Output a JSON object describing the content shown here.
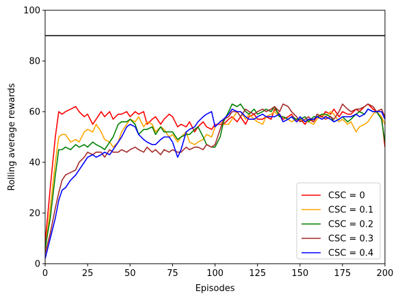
{
  "chart_data": {
    "type": "line",
    "title": "",
    "xlabel": "Episodes",
    "ylabel": "Rolling average rewards",
    "xlim": [
      0,
      200
    ],
    "ylim": [
      0,
      100
    ],
    "xticks": [
      0,
      25,
      50,
      75,
      100,
      125,
      150,
      175,
      200
    ],
    "yticks": [
      0,
      20,
      40,
      60,
      80,
      100
    ],
    "grid": false,
    "legend_position": "bottom-right",
    "reference_line": {
      "y": 90,
      "color": "#000000"
    },
    "series": [
      {
        "name": "CSC = 0",
        "color": "#ff0000",
        "x": [
          0,
          3,
          6,
          8,
          10,
          12,
          15,
          18,
          20,
          23,
          25,
          28,
          30,
          33,
          35,
          38,
          40,
          43,
          45,
          48,
          50,
          53,
          55,
          58,
          60,
          63,
          65,
          68,
          70,
          73,
          75,
          78,
          80,
          83,
          85,
          88,
          90,
          93,
          95,
          98,
          100,
          103,
          105,
          108,
          110,
          113,
          115,
          118,
          120,
          123,
          125,
          128,
          130,
          133,
          135,
          138,
          140,
          143,
          145,
          148,
          150,
          153,
          155,
          158,
          160,
          163,
          165,
          168,
          170,
          173,
          175,
          178,
          180,
          183,
          185,
          188,
          190,
          193,
          195,
          198,
          200
        ],
        "y": [
          8,
          30,
          50,
          60,
          59,
          60,
          61,
          62,
          60,
          58,
          59,
          55,
          57,
          60,
          58,
          60,
          57,
          59,
          59,
          60,
          58,
          60,
          59,
          60,
          55,
          57,
          58,
          55,
          57,
          59,
          58,
          54,
          55,
          54,
          56,
          52,
          54,
          56,
          54,
          53,
          55,
          55,
          55,
          57,
          58,
          56,
          58,
          55,
          58,
          59,
          57,
          57,
          58,
          57,
          61,
          59,
          57,
          58,
          59,
          56,
          57,
          55,
          57,
          56,
          58,
          58,
          60,
          59,
          61,
          58,
          60,
          59,
          59,
          61,
          60,
          62,
          63,
          61,
          60,
          58,
          46
        ]
      },
      {
        "name": "CSC = 0.1",
        "color": "#ffa500",
        "x": [
          0,
          3,
          6,
          8,
          10,
          12,
          15,
          18,
          20,
          23,
          25,
          28,
          30,
          33,
          35,
          38,
          40,
          43,
          45,
          48,
          50,
          53,
          55,
          58,
          60,
          63,
          65,
          68,
          70,
          73,
          75,
          78,
          80,
          83,
          85,
          88,
          90,
          93,
          95,
          98,
          100,
          103,
          105,
          108,
          110,
          113,
          115,
          118,
          120,
          123,
          125,
          128,
          130,
          133,
          135,
          138,
          140,
          143,
          145,
          148,
          150,
          153,
          155,
          158,
          160,
          163,
          165,
          168,
          170,
          173,
          175,
          178,
          180,
          183,
          185,
          188,
          190,
          193,
          195,
          198,
          200
        ],
        "y": [
          5,
          22,
          40,
          50,
          51,
          51,
          48,
          49,
          48,
          52,
          53,
          52,
          55,
          52,
          49,
          48,
          46,
          48,
          52,
          55,
          57,
          56,
          58,
          54,
          56,
          55,
          52,
          54,
          53,
          50,
          51,
          48,
          50,
          52,
          48,
          47,
          48,
          49,
          51,
          50,
          54,
          56,
          55,
          55,
          57,
          60,
          60,
          57,
          59,
          57,
          56,
          55,
          58,
          59,
          60,
          58,
          58,
          57,
          56,
          57,
          57,
          56,
          56,
          55,
          57,
          59,
          58,
          60,
          59,
          56,
          57,
          55,
          56,
          52,
          54,
          55,
          56,
          59,
          60,
          58,
          55
        ]
      },
      {
        "name": "CSC = 0.2",
        "color": "#008000",
        "x": [
          0,
          3,
          6,
          8,
          10,
          12,
          15,
          18,
          20,
          23,
          25,
          28,
          30,
          33,
          35,
          38,
          40,
          43,
          45,
          48,
          50,
          53,
          55,
          58,
          60,
          63,
          65,
          68,
          70,
          73,
          75,
          78,
          80,
          83,
          85,
          88,
          90,
          93,
          95,
          98,
          100,
          103,
          105,
          108,
          110,
          113,
          115,
          118,
          120,
          123,
          125,
          128,
          130,
          133,
          135,
          138,
          140,
          143,
          145,
          148,
          150,
          153,
          155,
          158,
          160,
          163,
          165,
          168,
          170,
          173,
          175,
          178,
          180,
          183,
          185,
          188,
          190,
          193,
          195,
          198,
          200
        ],
        "y": [
          6,
          18,
          35,
          45,
          45,
          46,
          45,
          47,
          46,
          47,
          46,
          48,
          47,
          46,
          45,
          48,
          50,
          55,
          56,
          56,
          57,
          55,
          51,
          53,
          53,
          54,
          51,
          54,
          52,
          52,
          52,
          49,
          50,
          51,
          51,
          53,
          54,
          50,
          47,
          46,
          46,
          50,
          56,
          60,
          63,
          62,
          63,
          60,
          59,
          61,
          59,
          60,
          61,
          60,
          62,
          58,
          58,
          57,
          58,
          57,
          57,
          58,
          56,
          58,
          58,
          59,
          59,
          58,
          56,
          57,
          58,
          56,
          57,
          59,
          60,
          59,
          61,
          60,
          60,
          57,
          48
        ]
      },
      {
        "name": "CSC = 0.3",
        "color": "#a52a2a",
        "x": [
          0,
          3,
          6,
          8,
          10,
          12,
          15,
          18,
          20,
          23,
          25,
          28,
          30,
          33,
          35,
          38,
          40,
          43,
          45,
          48,
          50,
          53,
          55,
          58,
          60,
          63,
          65,
          68,
          70,
          73,
          75,
          78,
          80,
          83,
          85,
          88,
          90,
          93,
          95,
          98,
          100,
          103,
          105,
          108,
          110,
          113,
          115,
          118,
          120,
          123,
          125,
          128,
          130,
          133,
          135,
          138,
          140,
          143,
          145,
          148,
          150,
          153,
          155,
          158,
          160,
          163,
          165,
          168,
          170,
          173,
          175,
          178,
          180,
          183,
          185,
          188,
          190,
          193,
          195,
          198,
          200
        ],
        "y": [
          4,
          12,
          22,
          28,
          33,
          35,
          36,
          37,
          40,
          42,
          44,
          43,
          44,
          44,
          42,
          45,
          44,
          44,
          45,
          44,
          45,
          46,
          45,
          44,
          46,
          44,
          45,
          43,
          45,
          44,
          45,
          44,
          44,
          46,
          45,
          46,
          46,
          45,
          47,
          46,
          47,
          53,
          57,
          58,
          60,
          60,
          58,
          61,
          60,
          59,
          60,
          61,
          60,
          61,
          62,
          60,
          63,
          62,
          60,
          58,
          56,
          57,
          58,
          56,
          59,
          58,
          57,
          58,
          57,
          60,
          63,
          61,
          60,
          61,
          61,
          62,
          63,
          62,
          60,
          61,
          58
        ]
      },
      {
        "name": "CSC = 0.4",
        "color": "#0000ff",
        "x": [
          0,
          3,
          6,
          8,
          10,
          12,
          15,
          18,
          20,
          23,
          25,
          28,
          30,
          33,
          35,
          38,
          40,
          43,
          45,
          48,
          50,
          53,
          55,
          58,
          60,
          63,
          65,
          68,
          70,
          73,
          75,
          78,
          80,
          83,
          85,
          88,
          90,
          93,
          95,
          98,
          100,
          103,
          105,
          108,
          110,
          113,
          115,
          118,
          120,
          123,
          125,
          128,
          130,
          133,
          135,
          138,
          140,
          143,
          145,
          148,
          150,
          153,
          155,
          158,
          160,
          163,
          165,
          168,
          170,
          173,
          175,
          178,
          180,
          183,
          185,
          188,
          190,
          193,
          195,
          198,
          200
        ],
        "y": [
          2,
          10,
          18,
          25,
          29,
          30,
          33,
          35,
          37,
          40,
          42,
          43,
          42,
          43,
          44,
          43,
          45,
          48,
          50,
          54,
          55,
          54,
          51,
          49,
          48,
          47,
          47,
          49,
          50,
          50,
          48,
          42,
          45,
          52,
          53,
          54,
          56,
          58,
          59,
          60,
          54,
          56,
          57,
          59,
          61,
          60,
          60,
          58,
          57,
          57,
          58,
          59,
          58,
          58,
          58,
          59,
          56,
          57,
          58,
          56,
          58,
          56,
          57,
          57,
          58,
          57,
          58,
          57,
          56,
          57,
          58,
          58,
          58,
          59,
          58,
          59,
          61,
          60,
          60,
          60,
          57
        ]
      }
    ]
  }
}
